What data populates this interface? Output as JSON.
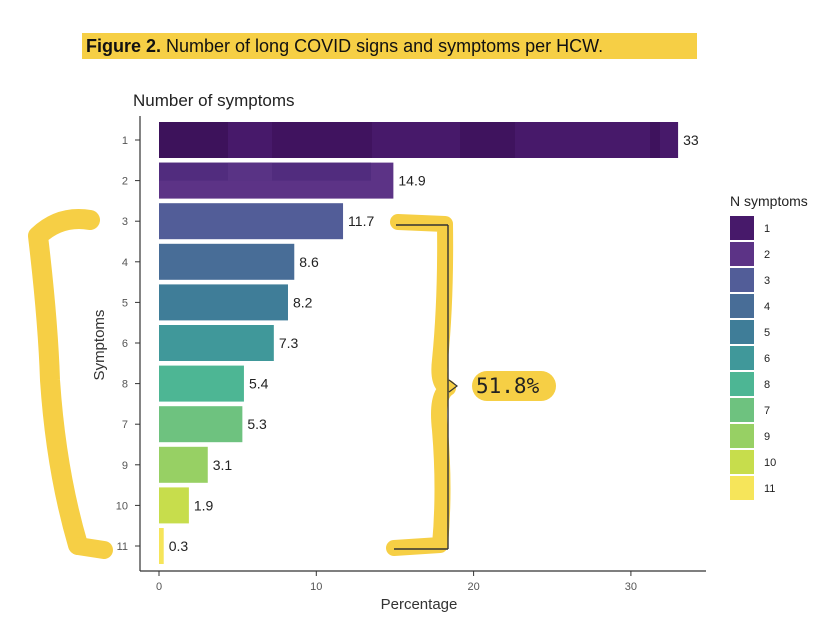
{
  "caption": {
    "label": "Figure 2.",
    "text": " Number of long COVID signs and symptoms per HCW."
  },
  "chart_data": {
    "type": "bar",
    "orientation": "horizontal",
    "title": "Number of symptoms",
    "xlabel": "Percentage",
    "ylabel": "Symptoms",
    "xlim": [
      0,
      34
    ],
    "xticks": [
      0,
      10,
      20,
      30
    ],
    "grid": false,
    "legend_position": "right",
    "legend_title": "N symptoms",
    "legend_entries": [
      "1",
      "2",
      "3",
      "4",
      "5",
      "6",
      "8",
      "7",
      "9",
      "10",
      "11"
    ],
    "categories": [
      "1",
      "2",
      "3",
      "4",
      "5",
      "6",
      "8",
      "7",
      "9",
      "10",
      "11"
    ],
    "values": [
      33,
      14.9,
      11.7,
      8.6,
      8.2,
      7.3,
      5.4,
      5.3,
      3.1,
      1.9,
      0.3
    ],
    "data_labels": [
      "33",
      "14.9",
      "11.7",
      "8.6",
      "8.2",
      "7.3",
      "5.4",
      "5.3",
      "3.1",
      "1.9",
      "0.3"
    ],
    "colors": [
      "#47196a",
      "#5c3386",
      "#525d98",
      "#486d97",
      "#3f7d98",
      "#40989a",
      "#4db694",
      "#6ec27f",
      "#97d064",
      "#c7dd4c",
      "#f6e55a"
    ],
    "annotation": "51.8%"
  },
  "colors": {
    "highlight": "#f6cf45",
    "bracket": "#333333",
    "axis": "#333333"
  }
}
